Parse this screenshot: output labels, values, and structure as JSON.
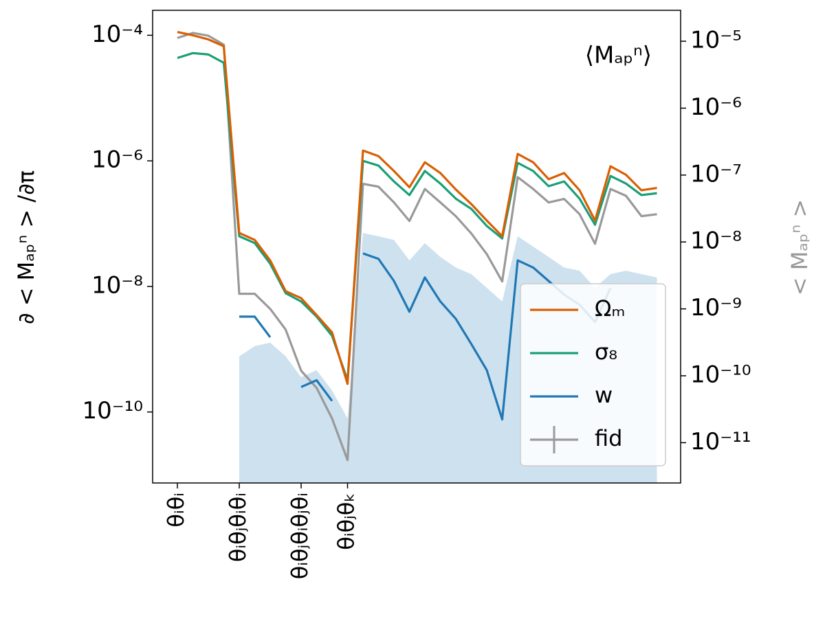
{
  "chart_data": {
    "type": "line",
    "ylabel": "∂ < Mₐₚⁿ > /∂π",
    "y2label": "< Mₐₚⁿ >",
    "annotation": "⟨Mₐₚⁿ⟩",
    "log_scale": true,
    "legend": "lower right",
    "categories": [
      "θᵢθᵢ",
      null,
      null,
      null,
      "θᵢθⱼθᵢθᵢ",
      null,
      null,
      null,
      "θᵢθⱼθᵢθⱼθᵢ",
      null,
      null,
      "θᵢθⱼθₖ",
      null,
      null,
      null,
      null,
      null,
      null,
      null,
      null,
      null,
      null,
      null,
      null,
      null,
      null,
      null,
      null,
      null,
      null,
      null,
      null
    ],
    "ylim": [
      7.4e-12,
      0.00025
    ],
    "yticks": [
      {
        "value": 0.0001,
        "label": "10⁻⁴"
      },
      {
        "value": 1e-06,
        "label": "10⁻⁶"
      },
      {
        "value": 1e-08,
        "label": "10⁻⁸"
      },
      {
        "value": 1e-10,
        "label": "10⁻¹⁰"
      }
    ],
    "y2lim": [
      2.5e-12,
      2.9e-05
    ],
    "y2ticks": [
      {
        "value": 1e-05,
        "label": "10⁻⁵"
      },
      {
        "value": 1e-06,
        "label": "10⁻⁶"
      },
      {
        "value": 1e-07,
        "label": "10⁻⁷"
      },
      {
        "value": 1e-08,
        "label": "10⁻⁸"
      },
      {
        "value": 1e-09,
        "label": "10⁻⁹"
      },
      {
        "value": 1e-10,
        "label": "10⁻¹⁰"
      },
      {
        "value": 1e-11,
        "label": "10⁻¹¹"
      }
    ],
    "series": [
      {
        "name": "Ωₘ",
        "color": "#d95f02",
        "values": [
          0.000113,
          0.0001,
          8.6e-05,
          6.7e-05,
          7.1e-08,
          5.5e-08,
          2.6e-08,
          8.4e-09,
          6.5e-09,
          3.5e-09,
          1.85e-09,
          2.8e-10,
          1.46e-06,
          1.19e-06,
          6.9e-07,
          3.8e-07,
          9.5e-07,
          6.4e-07,
          3.5e-07,
          2.05e-07,
          1.12e-07,
          6.3e-08,
          1.29e-06,
          9.5e-07,
          5.1e-07,
          6.4e-07,
          3.4e-07,
          1.12e-07,
          8.2e-07,
          6e-07,
          3.4e-07,
          3.7e-07
        ]
      },
      {
        "name": "σ₈",
        "color": "#1b9e77",
        "values": [
          4.35e-05,
          5.2e-05,
          4.95e-05,
          3.65e-05,
          6.3e-08,
          4.9e-08,
          2.3e-08,
          7.8e-09,
          5.75e-09,
          3.3e-09,
          1.63e-09,
          3.2e-10,
          1e-06,
          8.4e-07,
          4.7e-07,
          2.85e-07,
          6.9e-07,
          4.35e-07,
          2.5e-07,
          1.72e-07,
          9.2e-08,
          5.8e-08,
          9.3e-07,
          6.9e-07,
          3.95e-07,
          4.7e-07,
          2.5e-07,
          9.6e-08,
          5.75e-07,
          4.35e-07,
          2.85e-07,
          3.05e-07
        ]
      },
      {
        "name": "w",
        "color": "#1f78b4",
        "values": [
          null,
          null,
          null,
          null,
          3.3e-09,
          3.3e-09,
          1.55e-09,
          null,
          2.5e-10,
          3.2e-10,
          1.5e-10,
          null,
          3.35e-08,
          2.75e-08,
          1.22e-08,
          3.95e-09,
          1.39e-08,
          5.75e-09,
          3.05e-09,
          1.21e-09,
          4.65e-10,
          7.6e-11,
          2.6e-08,
          2e-08,
          1.22e-08,
          7.4e-09,
          5.1e-09,
          2.7e-09,
          9.5e-09,
          null,
          null,
          null
        ],
        "band_upper": [
          null,
          null,
          null,
          null,
          7.7e-10,
          1.12e-09,
          1.27e-09,
          7.7e-10,
          3.6e-10,
          4.65e-10,
          2.2e-10,
          7.9e-11,
          7.1e-08,
          6.3e-08,
          5.5e-08,
          2.6e-08,
          4.9e-08,
          2.95e-08,
          2e-08,
          1.57e-08,
          9.5e-09,
          5.75e-09,
          6.3e-08,
          4.3e-08,
          2.95e-08,
          2e-08,
          1.78e-08,
          9.5e-09,
          1.57e-08,
          1.78e-08,
          1.57e-08,
          1.39e-08
        ]
      },
      {
        "name": "fid",
        "color": "#999999",
        "axis": "y2",
        "values": [
          1.12e-05,
          1.33e-05,
          1.21e-05,
          8.9e-06,
          1.68e-09,
          1.68e-09,
          1e-09,
          4.9e-10,
          1.19e-10,
          6.6e-11,
          2.3e-11,
          5.5e-12,
          7.4e-08,
          6.7e-08,
          3.9e-08,
          2.06e-08,
          6.2e-08,
          3.9e-08,
          2.43e-08,
          1.34e-08,
          6.6e-09,
          2.57e-09,
          9.3e-08,
          6.2e-08,
          3.9e-08,
          4.4e-08,
          2.6e-08,
          9.4e-09,
          6.2e-08,
          4.9e-08,
          2.43e-08,
          2.6e-08
        ]
      }
    ]
  }
}
